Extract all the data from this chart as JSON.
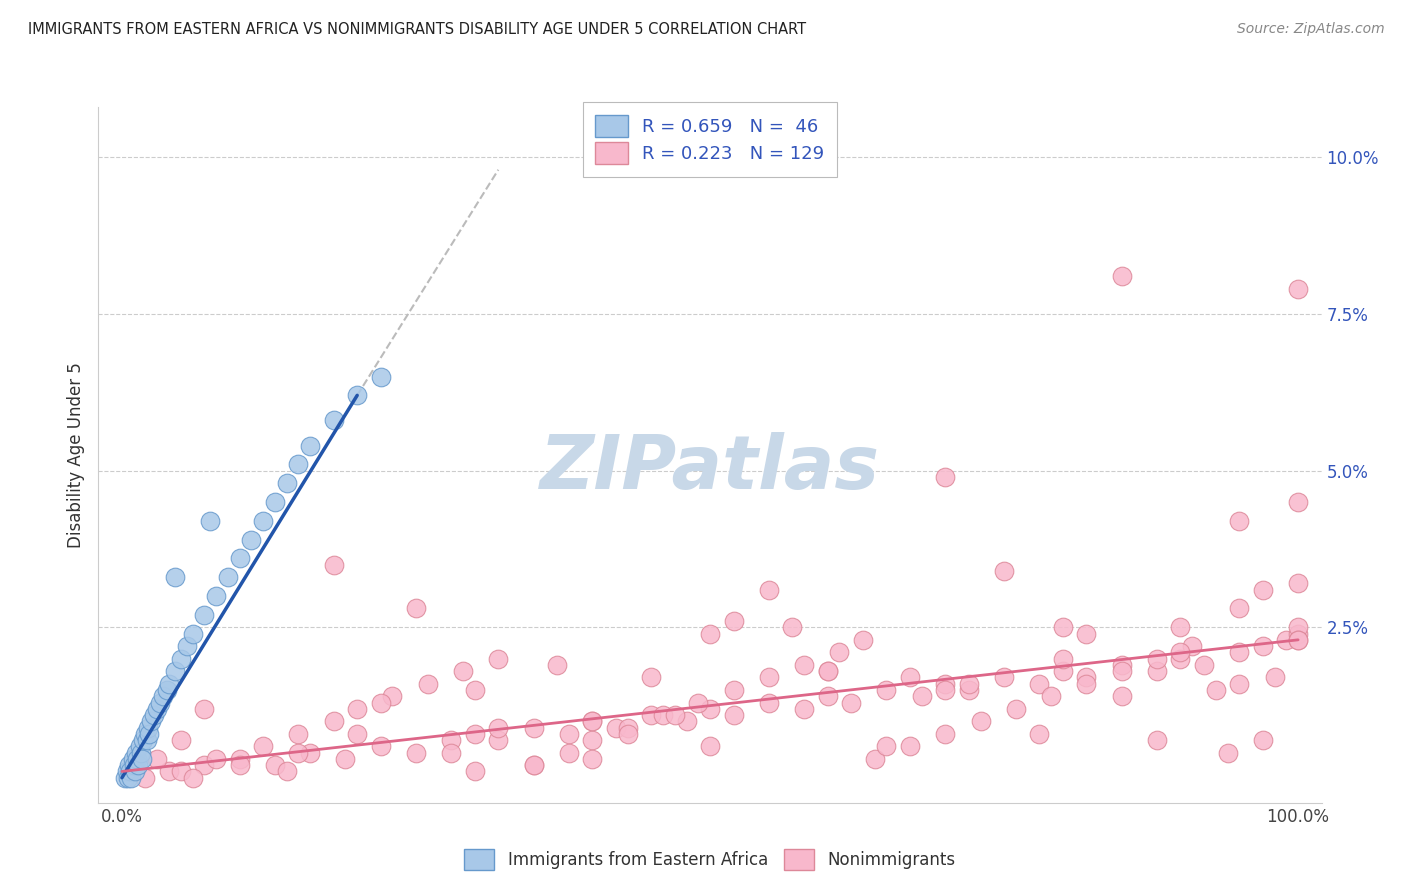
{
  "title": "IMMIGRANTS FROM EASTERN AFRICA VS NONIMMIGRANTS DISABILITY AGE UNDER 5 CORRELATION CHART",
  "source": "Source: ZipAtlas.com",
  "ylabel": "Disability Age Under 5",
  "xlim": [
    -2,
    102
  ],
  "ylim": [
    -0.3,
    10.8
  ],
  "yticks": [
    0,
    2.5,
    5.0,
    7.5,
    10.0
  ],
  "ytick_labels": [
    "",
    "2.5%",
    "5.0%",
    "7.5%",
    "10.0%"
  ],
  "xtick_labels": [
    "0.0%",
    "100.0%"
  ],
  "blue_R": 0.659,
  "blue_N": 46,
  "pink_R": 0.223,
  "pink_N": 129,
  "blue_color": "#A8C8E8",
  "blue_edge_color": "#6699CC",
  "blue_line_color": "#2255AA",
  "pink_color": "#F8B8CC",
  "pink_edge_color": "#DD8899",
  "pink_line_color": "#DD6688",
  "dash_line_color": "#BBBBBB",
  "watermark_color": "#C8D8E8",
  "legend_label_blue": "Immigrants from Eastern Africa",
  "legend_label_pink": "Nonimmigrants",
  "blue_line_x0": 0.0,
  "blue_line_y0": 0.1,
  "blue_line_x1": 20.0,
  "blue_line_y1": 6.2,
  "dash_line_x0": 20.0,
  "dash_line_y0": 6.2,
  "dash_line_x1": 32.0,
  "dash_line_y1": 9.8,
  "pink_line_x0": 0.0,
  "pink_line_y0": 0.2,
  "pink_line_x1": 100.0,
  "pink_line_y1": 2.3,
  "blue_scatter_x": [
    0.3,
    0.4,
    0.5,
    0.6,
    0.7,
    0.8,
    0.9,
    1.0,
    1.1,
    1.2,
    1.3,
    1.4,
    1.5,
    1.6,
    1.7,
    1.8,
    2.0,
    2.1,
    2.2,
    2.3,
    2.5,
    2.7,
    3.0,
    3.2,
    3.5,
    3.8,
    4.0,
    4.5,
    5.0,
    5.5,
    6.0,
    7.0,
    8.0,
    9.0,
    10.0,
    11.0,
    12.0,
    13.0,
    14.0,
    15.0,
    16.0,
    18.0,
    20.0,
    22.0,
    7.5,
    4.5
  ],
  "blue_scatter_y": [
    0.1,
    0.2,
    0.1,
    0.3,
    0.2,
    0.1,
    0.4,
    0.3,
    0.2,
    0.5,
    0.4,
    0.3,
    0.6,
    0.5,
    0.4,
    0.7,
    0.8,
    0.7,
    0.9,
    0.8,
    1.0,
    1.1,
    1.2,
    1.3,
    1.4,
    1.5,
    1.6,
    1.8,
    2.0,
    2.2,
    2.4,
    2.7,
    3.0,
    3.3,
    3.6,
    3.9,
    4.2,
    4.5,
    4.8,
    5.1,
    5.4,
    5.8,
    6.2,
    6.5,
    4.2,
    3.3
  ],
  "pink_scatter_x": [
    2.0,
    4.0,
    7.0,
    10.0,
    13.0,
    16.0,
    19.0,
    22.0,
    25.0,
    28.0,
    30.0,
    32.0,
    35.0,
    38.0,
    40.0,
    42.0,
    45.0,
    48.0,
    50.0,
    52.0,
    55.0,
    58.0,
    60.0,
    62.0,
    65.0,
    68.0,
    70.0,
    72.0,
    75.0,
    78.0,
    80.0,
    82.0,
    85.0,
    88.0,
    90.0,
    92.0,
    95.0,
    97.0,
    99.0,
    100.0,
    5.0,
    8.0,
    12.0,
    15.0,
    18.0,
    20.0,
    23.0,
    26.0,
    29.0,
    32.0,
    35.0,
    38.0,
    40.0,
    43.0,
    46.0,
    49.0,
    52.0,
    55.0,
    58.0,
    61.0,
    64.0,
    67.0,
    70.0,
    73.0,
    76.0,
    79.0,
    82.0,
    85.0,
    88.0,
    91.0,
    94.0,
    97.0,
    100.0,
    30.0,
    40.0,
    50.0,
    60.0,
    70.0,
    80.0,
    90.0,
    100.0,
    100.0,
    100.0,
    95.0,
    95.0,
    90.0,
    85.0,
    80.0,
    75.0,
    70.0,
    65.0,
    60.0,
    55.0,
    50.0,
    45.0,
    40.0,
    35.0,
    30.0,
    25.0,
    20.0,
    15.0,
    10.0,
    7.0,
    5.0,
    3.0,
    18.0,
    32.0,
    47.0,
    63.0,
    78.0,
    93.0,
    100.0,
    98.0,
    88.0,
    72.0,
    57.0,
    43.0,
    28.0,
    14.0,
    6.0,
    22.0,
    37.0,
    52.0,
    67.0,
    82.0,
    97.0,
    100.0,
    95.0,
    85.0
  ],
  "pink_scatter_y": [
    0.1,
    0.2,
    0.3,
    0.4,
    0.3,
    0.5,
    0.4,
    0.6,
    0.5,
    0.7,
    0.8,
    0.7,
    0.9,
    0.8,
    1.0,
    0.9,
    1.1,
    1.0,
    1.2,
    1.1,
    1.3,
    1.2,
    1.4,
    1.3,
    1.5,
    1.4,
    1.6,
    1.5,
    1.7,
    1.6,
    1.8,
    1.7,
    1.9,
    1.8,
    2.0,
    1.9,
    2.1,
    2.2,
    2.3,
    2.4,
    0.2,
    0.4,
    0.6,
    0.8,
    1.0,
    1.2,
    1.4,
    1.6,
    1.8,
    2.0,
    0.3,
    0.5,
    0.7,
    0.9,
    1.1,
    1.3,
    1.5,
    1.7,
    1.9,
    2.1,
    0.4,
    0.6,
    0.8,
    1.0,
    1.2,
    1.4,
    1.6,
    1.8,
    2.0,
    2.2,
    0.5,
    0.7,
    2.5,
    0.2,
    0.4,
    0.6,
    1.8,
    1.5,
    2.0,
    2.5,
    2.3,
    4.5,
    3.2,
    1.6,
    2.8,
    2.1,
    1.4,
    2.5,
    3.4,
    4.9,
    0.6,
    1.8,
    3.1,
    2.4,
    1.7,
    1.0,
    0.3,
    1.5,
    2.8,
    0.8,
    0.5,
    0.3,
    1.2,
    0.7,
    0.4,
    3.5,
    0.9,
    1.1,
    2.3,
    0.8,
    1.5,
    2.3,
    1.7,
    0.7,
    1.6,
    2.5,
    0.8,
    0.5,
    0.2,
    0.1,
    1.3,
    1.9,
    2.6,
    1.7,
    2.4,
    3.1,
    7.9,
    4.2,
    8.1
  ]
}
